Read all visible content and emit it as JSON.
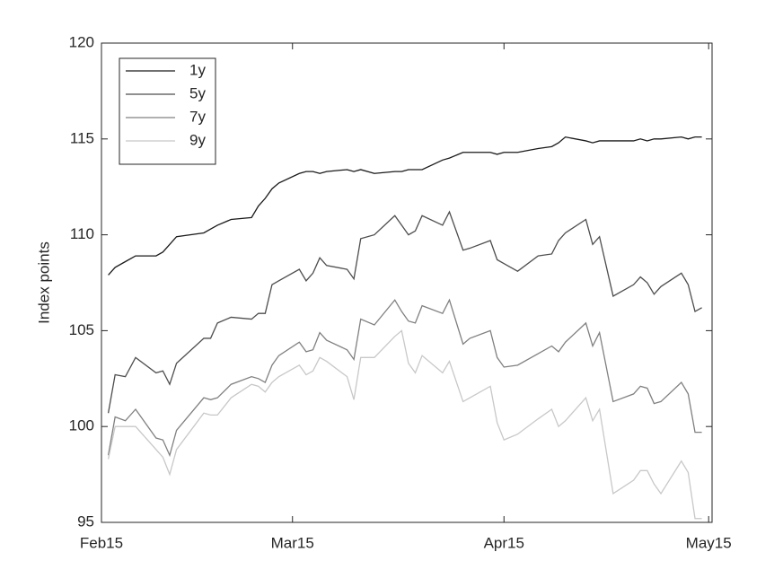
{
  "chart_data": {
    "type": "line",
    "y_label": "Index points",
    "x": [
      1,
      2,
      3.5,
      5,
      8,
      9,
      10,
      11,
      15,
      16,
      17,
      19,
      22,
      23,
      24,
      25,
      26,
      29,
      30,
      31,
      32,
      33,
      36,
      37,
      38,
      40,
      43,
      44,
      45,
      46,
      47,
      50,
      51,
      53,
      54,
      57,
      58,
      59,
      61,
      64,
      66,
      67,
      68,
      71,
      72,
      73,
      75,
      78,
      79,
      80,
      81,
      82,
      85,
      86,
      87,
      88
    ],
    "xlim": [
      0,
      89.5
    ],
    "xticks": [
      {
        "value": 0,
        "label": "Feb15"
      },
      {
        "value": 28,
        "label": "Mar15"
      },
      {
        "value": 59,
        "label": "Apr15"
      },
      {
        "value": 89,
        "label": "May15"
      }
    ],
    "ylim": [
      95,
      120
    ],
    "yticks": [
      95,
      100,
      105,
      110,
      115,
      120
    ],
    "grid": false,
    "legend": "top-left",
    "series": [
      {
        "name": "1y",
        "color": "#1a1a1a",
        "values": [
          107.9,
          108.3,
          108.6,
          108.9,
          108.9,
          109.1,
          109.5,
          109.9,
          110.1,
          110.3,
          110.5,
          110.8,
          110.9,
          111.5,
          111.9,
          112.4,
          112.7,
          113.2,
          113.3,
          113.3,
          113.2,
          113.3,
          113.4,
          113.3,
          113.4,
          113.2,
          113.3,
          113.3,
          113.4,
          113.4,
          113.4,
          113.9,
          114.0,
          114.3,
          114.3,
          114.3,
          114.2,
          114.3,
          114.3,
          114.5,
          114.6,
          114.8,
          115.1,
          114.9,
          114.8,
          114.9,
          114.9,
          114.9,
          115.0,
          114.9,
          115.0,
          115.0,
          115.1,
          115.0,
          115.1,
          115.1
        ]
      },
      {
        "name": "5y",
        "color": "#4d4d4d",
        "values": [
          100.7,
          102.7,
          102.6,
          103.6,
          102.8,
          102.9,
          102.2,
          103.3,
          104.6,
          104.6,
          105.4,
          105.7,
          105.6,
          105.9,
          105.9,
          107.4,
          107.6,
          108.2,
          107.6,
          108.0,
          108.8,
          108.4,
          108.2,
          107.7,
          109.8,
          110.0,
          111.0,
          110.5,
          110.0,
          110.2,
          111.0,
          110.5,
          111.2,
          109.2,
          109.3,
          109.7,
          108.7,
          108.5,
          108.1,
          108.9,
          109.0,
          109.7,
          110.1,
          110.8,
          109.5,
          109.9,
          106.8,
          107.4,
          107.8,
          107.5,
          106.9,
          107.3,
          108.0,
          107.4,
          106.0,
          106.2
        ]
      },
      {
        "name": "7y",
        "color": "#808080",
        "values": [
          98.5,
          100.5,
          100.3,
          100.9,
          99.4,
          99.3,
          98.5,
          99.8,
          101.5,
          101.4,
          101.5,
          102.2,
          102.6,
          102.5,
          102.3,
          103.2,
          103.7,
          104.4,
          103.9,
          104.0,
          104.9,
          104.5,
          104.0,
          103.5,
          105.6,
          105.3,
          106.6,
          106.0,
          105.5,
          105.4,
          106.3,
          105.9,
          106.6,
          104.3,
          104.6,
          105.0,
          103.6,
          103.1,
          103.2,
          103.8,
          104.2,
          103.9,
          104.4,
          105.4,
          104.2,
          104.9,
          101.3,
          101.7,
          102.1,
          102.0,
          101.2,
          101.3,
          102.3,
          101.7,
          99.7,
          99.7
        ]
      },
      {
        "name": "9y",
        "color": "#c8c8c8",
        "values": [
          98.3,
          100.0,
          100.0,
          100.0,
          98.8,
          98.4,
          97.5,
          98.8,
          100.7,
          100.6,
          100.6,
          101.5,
          102.2,
          102.1,
          101.8,
          102.3,
          102.6,
          103.2,
          102.7,
          102.9,
          103.6,
          103.4,
          102.6,
          101.4,
          103.6,
          103.6,
          104.7,
          105.0,
          103.3,
          102.8,
          103.7,
          102.8,
          103.4,
          101.3,
          101.5,
          102.1,
          100.2,
          99.3,
          99.6,
          100.4,
          100.9,
          100.0,
          100.3,
          101.5,
          100.3,
          100.9,
          96.5,
          97.2,
          97.7,
          97.7,
          97.0,
          96.5,
          98.2,
          97.6,
          95.2,
          95.2
        ]
      }
    ]
  }
}
